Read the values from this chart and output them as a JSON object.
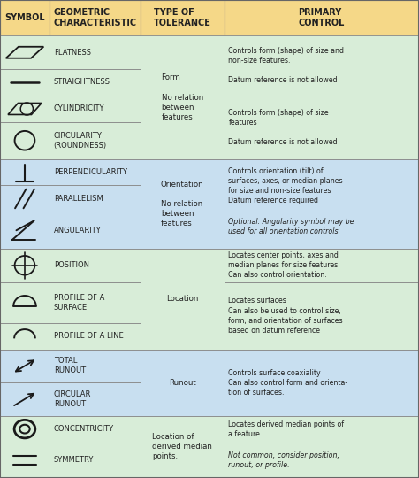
{
  "header_bg": "#F5D888",
  "form_bg": "#D8EDD8",
  "orient_bg": "#C8DFF0",
  "location_bg": "#D8EDD8",
  "runout_bg": "#C8DFF0",
  "misc_bg": "#D8EDD8",
  "border_color": "#888888",
  "text_color": "#222222",
  "headers": [
    "SYMBOL",
    "GEOMETRIC\nCHARACTERISTIC",
    "TYPE OF\nTOLERANCE",
    "PRIMARY\nCONTROL"
  ],
  "row_names": [
    "FLATNESS",
    "STRAIGHTNESS",
    "CYLINDRICITY",
    "CIRCULARITY\n(ROUNDNESS)",
    "PERPENDICULARITY",
    "PARALLELISM",
    "ANGULARITY",
    "POSITION",
    "PROFILE OF A\nSURFACE",
    "PROFILE OF A LINE",
    "TOTAL\nRUNOUT",
    "CIRCULAR\nRUNOUT",
    "CONCENTRICITY",
    "SYMMETRY"
  ],
  "row_bgs": [
    "#D8EDD8",
    "#D8EDD8",
    "#D8EDD8",
    "#D8EDD8",
    "#C8DFF0",
    "#C8DFF0",
    "#C8DFF0",
    "#D8EDD8",
    "#D8EDD8",
    "#D8EDD8",
    "#C8DFF0",
    "#C8DFF0",
    "#D8EDD8",
    "#D8EDD8"
  ],
  "group_spans": [
    {
      "rows": [
        0,
        3
      ],
      "text": "Form\n\nNo relation\nbetween\nfeatures",
      "bg": "#D8EDD8"
    },
    {
      "rows": [
        4,
        6
      ],
      "text": "Orientation\n\nNo relation\nbetween\nfeatures",
      "bg": "#C8DFF0"
    },
    {
      "rows": [
        7,
        9
      ],
      "text": "Location",
      "bg": "#D8EDD8"
    },
    {
      "rows": [
        10,
        11
      ],
      "text": "Runout",
      "bg": "#C8DFF0"
    },
    {
      "rows": [
        12,
        13
      ],
      "text": "Location of\nderived median\npoints.",
      "bg": "#D8EDD8"
    }
  ],
  "desc_cells": [
    {
      "rows": [
        0,
        1
      ],
      "text": "Controls form (shape) of size and\nnon-size features.\n\nDatum reference is not allowed",
      "italic_split": false,
      "bg": "#D8EDD8"
    },
    {
      "rows": [
        2,
        3
      ],
      "text": "Controls form (shape) of size\nfeatures\n\nDatum reference is not allowed",
      "italic_split": false,
      "bg": "#D8EDD8"
    },
    {
      "rows": [
        4,
        6
      ],
      "normal": "Controls orientation (tilt) of\nsurfaces, axes, or median planes\nfor size and non-size features\nDatum reference required",
      "italic": "Optional: Angularity symbol may be\nused for all orientation controls",
      "mixed": true,
      "bg": "#C8DFF0"
    },
    {
      "rows": [
        7,
        7
      ],
      "text": "Locates center points, axes and\nmedian planes for size features.\nCan also control orientation.",
      "italic_split": false,
      "bg": "#D8EDD8"
    },
    {
      "rows": [
        8,
        9
      ],
      "text": "Locates surfaces\nCan also be used to control size,\nform, and orientation of surfaces\nbased on datum reference",
      "italic_split": false,
      "bg": "#D8EDD8"
    },
    {
      "rows": [
        10,
        11
      ],
      "text": "Controls surface coaxiality\nCan also control form and orienta-\ntion of surfaces.",
      "italic_split": false,
      "bg": "#C8DFF0"
    },
    {
      "rows": [
        12,
        12
      ],
      "text": "Locates derived median points of\na feature",
      "italic_split": false,
      "bg": "#D8EDD8"
    },
    {
      "rows": [
        13,
        13
      ],
      "normal": "Not common, consider position,\nrunout, or profile.",
      "italic_split": true,
      "bg": "#D8EDD8"
    }
  ],
  "figsize": [
    4.74,
    5.4
  ],
  "dpi": 100
}
